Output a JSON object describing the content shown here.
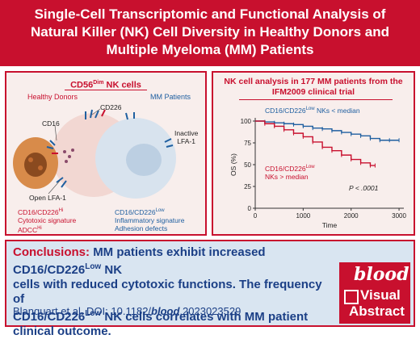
{
  "header": {
    "title_line1": "Single-Cell Transcriptomic and Functional Analysis of",
    "title_line2": "Natural Killer (NK) Cell Diversity in Healthy Donors and",
    "title_line3": "Multiple Myeloma (MM) Patients"
  },
  "left_panel": {
    "title_base": "CD56",
    "title_sup": "Dim",
    "title_suffix": " NK cells",
    "healthy_donors": "Healthy Donors",
    "mm_patients": "MM Patients",
    "cd226": "CD226",
    "cd16": "CD16",
    "inactive_lfa1_l1": "Inactive",
    "inactive_lfa1_l2": "LFA-1",
    "open_lfa1": "Open LFA-1",
    "hi_label": "CD16/CD226",
    "hi_sup": "Hi",
    "hi_line2": "Cytotoxic signature",
    "hi_line3": "ADCC",
    "hi_line3_sup": "Hi",
    "low_label": "CD16/CD226",
    "low_sup": "Low",
    "low_line2": "Inflammatory signature",
    "low_line3": "Adhesion defects"
  },
  "right_panel": {
    "title_line1": "NK cell analysis in 177 MM patients from the",
    "title_line2": "IFM2009 clinical trial"
  },
  "chart_data": {
    "type": "line",
    "title": "",
    "xlabel": "Time",
    "ylabel": "OS (%)",
    "xlim": [
      0,
      3100
    ],
    "ylim": [
      0,
      100
    ],
    "x_ticks": [
      0,
      1000,
      2000,
      3000
    ],
    "y_ticks": [
      0,
      25,
      50,
      75,
      100
    ],
    "annotation": "P < .0001",
    "series": [
      {
        "name": "CD16/CD226Low NKs < median",
        "color": "#1f5fa0",
        "x": [
          0,
          200,
          400,
          600,
          800,
          1000,
          1200,
          1400,
          1600,
          1800,
          2000,
          2200,
          2400,
          2600,
          2800,
          3000
        ],
        "y": [
          100,
          99,
          98,
          97,
          96,
          94,
          92,
          91,
          89,
          87,
          85,
          83,
          80,
          78,
          78,
          78
        ]
      },
      {
        "name": "CD16/CD226Low NKs > median",
        "color": "#c8102e",
        "x": [
          0,
          200,
          400,
          600,
          800,
          1000,
          1200,
          1400,
          1600,
          1800,
          2000,
          2200,
          2400,
          2500
        ],
        "y": [
          100,
          97,
          94,
          90,
          86,
          82,
          76,
          70,
          66,
          61,
          56,
          52,
          49,
          49
        ]
      }
    ],
    "series_labels": {
      "blue_base": "CD16/CD226",
      "blue_sup": "Low",
      "blue_suffix": " NKs < median",
      "red_line1_base": "CD16/CD226",
      "red_line1_sup": "Low",
      "red_line2": "NKs > median"
    }
  },
  "conclusion": {
    "label": "Conclusions:",
    "line1a": "MM patients exhibit increased CD16/CD226",
    "sup1": "Low",
    "line1b": " NK",
    "line2": "cells with reduced cytotoxic functions. The frequency of",
    "line3a": "CD16/CD226",
    "sup2": "Low",
    "line3b": " NK cells correlates with MM patient",
    "line4": "clinical outcome.",
    "citation_a": "Blanquart et al. DOI: 10.1182/",
    "citation_b": "blood",
    "citation_c": ".2023023529"
  },
  "badge": {
    "brand": "blood",
    "line1": "Visual",
    "line2": "Abstract"
  },
  "colors": {
    "brand_red": "#c8102e",
    "series_blue": "#1f5fa0",
    "conclusion_bg": "#d9e5f1",
    "panel_bg": "#f8eeec"
  }
}
